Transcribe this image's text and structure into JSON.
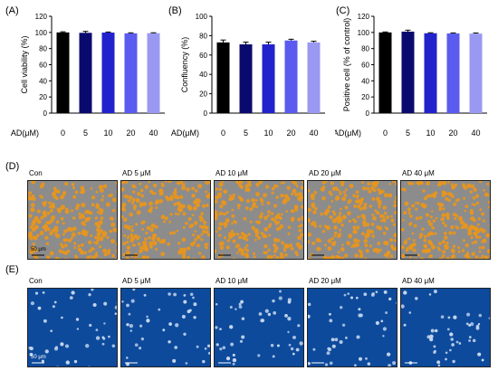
{
  "panels": {
    "a": "(A)",
    "b": "(B)",
    "c": "(C)",
    "d": "(D)",
    "e": "(E)"
  },
  "x_axis_label": "AD(μM)",
  "chart_data": [
    {
      "type": "bar",
      "categories": [
        "0",
        "5",
        "10",
        "20",
        "40"
      ],
      "values": [
        100,
        99.5,
        99.8,
        98.9,
        99.1
      ],
      "errors": [
        0.8,
        1.8,
        0.7,
        0.6,
        0.5
      ],
      "ylabel": "Cell viability (%)",
      "ylim": [
        0,
        120
      ],
      "yticks": [
        "0",
        "20",
        "40",
        "60",
        "80",
        "100",
        "120"
      ],
      "colors": [
        "#000000",
        "#0a0a6e",
        "#2222cc",
        "#5b5bef",
        "#9999f2"
      ]
    },
    {
      "type": "bar",
      "categories": [
        "0",
        "5",
        "10",
        "20",
        "40"
      ],
      "values": [
        73,
        71,
        71,
        75,
        73
      ],
      "errors": [
        2.5,
        2.3,
        2.3,
        1.3,
        1.2
      ],
      "ylabel": "Confluency (%)",
      "ylim": [
        0,
        100
      ],
      "yticks": [
        "0",
        "20",
        "40",
        "60",
        "80",
        "100"
      ],
      "colors": [
        "#000000",
        "#0a0a6e",
        "#2222cc",
        "#5b5bef",
        "#9999f2"
      ]
    },
    {
      "type": "bar",
      "categories": [
        "0",
        "5",
        "10",
        "20",
        "40"
      ],
      "values": [
        100,
        101,
        99,
        98.8,
        98.5
      ],
      "errors": [
        0.6,
        1.8,
        0.6,
        0.6,
        0.8
      ],
      "ylabel": "Positive cell (% of control)",
      "ylim": [
        0,
        120
      ],
      "yticks": [
        "0",
        "20",
        "40",
        "60",
        "80",
        "100",
        "120"
      ],
      "colors": [
        "#000000",
        "#0a0a6e",
        "#2222cc",
        "#5b5bef",
        "#9999f2"
      ]
    }
  ],
  "captions": [
    "Con",
    "AD 5 μM",
    "AD 10 μM",
    "AD 20 μM",
    "AD 40 μM"
  ],
  "scale_bar": "50 μm",
  "image_colors": {
    "confluency_bg": "#8c8c8c",
    "confluency_cell": "#e8961e",
    "stain_bg": "#0d4a9c",
    "stain_cell": "#c9d9ef"
  }
}
